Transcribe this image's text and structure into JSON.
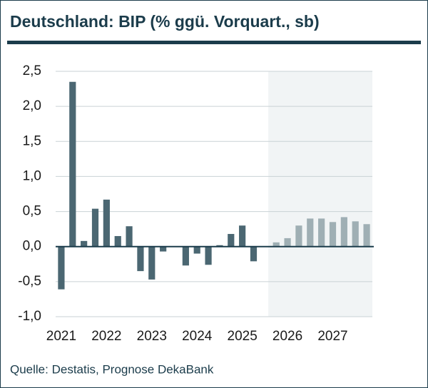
{
  "chart_data": {
    "type": "bar",
    "title": "Deutschland: BIP (% ggü. Vorquart., sb)",
    "source": "Quelle: Destatis, Prognose DekaBank",
    "categories": [
      "2021",
      null,
      null,
      null,
      "2022",
      null,
      null,
      null,
      "2023",
      null,
      null,
      null,
      "2024",
      null,
      null,
      null,
      "2025",
      null,
      null,
      null,
      "2026",
      null,
      null,
      null,
      "2027",
      null,
      null,
      null
    ],
    "series": [
      {
        "color": "#4b6772",
        "values": [
          -0.61,
          2.35,
          0.08,
          0.54,
          0.67,
          0.15,
          0.29,
          -0.35,
          -0.47,
          -0.07,
          0.0,
          -0.27,
          -0.1,
          -0.26,
          0.02,
          0.18,
          0.3,
          -0.21,
          0.0,
          null,
          null,
          null,
          null,
          null,
          null,
          null,
          null,
          null
        ]
      },
      {
        "color": "#9fafb4",
        "values": [
          null,
          null,
          null,
          null,
          null,
          null,
          null,
          null,
          null,
          null,
          null,
          null,
          null,
          null,
          null,
          null,
          null,
          null,
          null,
          0.06,
          0.12,
          0.3,
          0.4,
          0.4,
          0.35,
          0.42,
          0.36,
          0.32
        ]
      }
    ],
    "ylim": [
      -1.0,
      2.5
    ],
    "yticks": [
      {
        "value": -1.0,
        "label": "-1,0"
      },
      {
        "value": -0.5,
        "label": "-0,5"
      },
      {
        "value": 0.0,
        "label": "0,0"
      },
      {
        "value": 0.5,
        "label": "0,5"
      },
      {
        "value": 1.0,
        "label": "1,0"
      },
      {
        "value": 1.5,
        "label": "1,5"
      },
      {
        "value": 2.0,
        "label": "2,0"
      },
      {
        "value": 2.5,
        "label": "2,5"
      }
    ],
    "grid": true
  }
}
